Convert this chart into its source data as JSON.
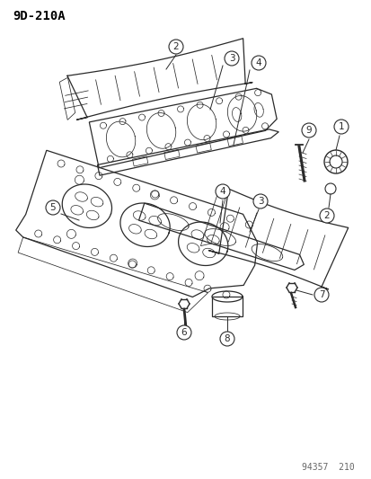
{
  "title": "9D-210A",
  "footer": "94357  210",
  "bg_color": "#ffffff",
  "line_color": "#2a2a2a",
  "label_color": "#000000",
  "title_fontsize": 10,
  "footer_fontsize": 7,
  "label_fontsize": 7.5,
  "fig_width": 4.14,
  "fig_height": 5.33,
  "dpi": 100
}
